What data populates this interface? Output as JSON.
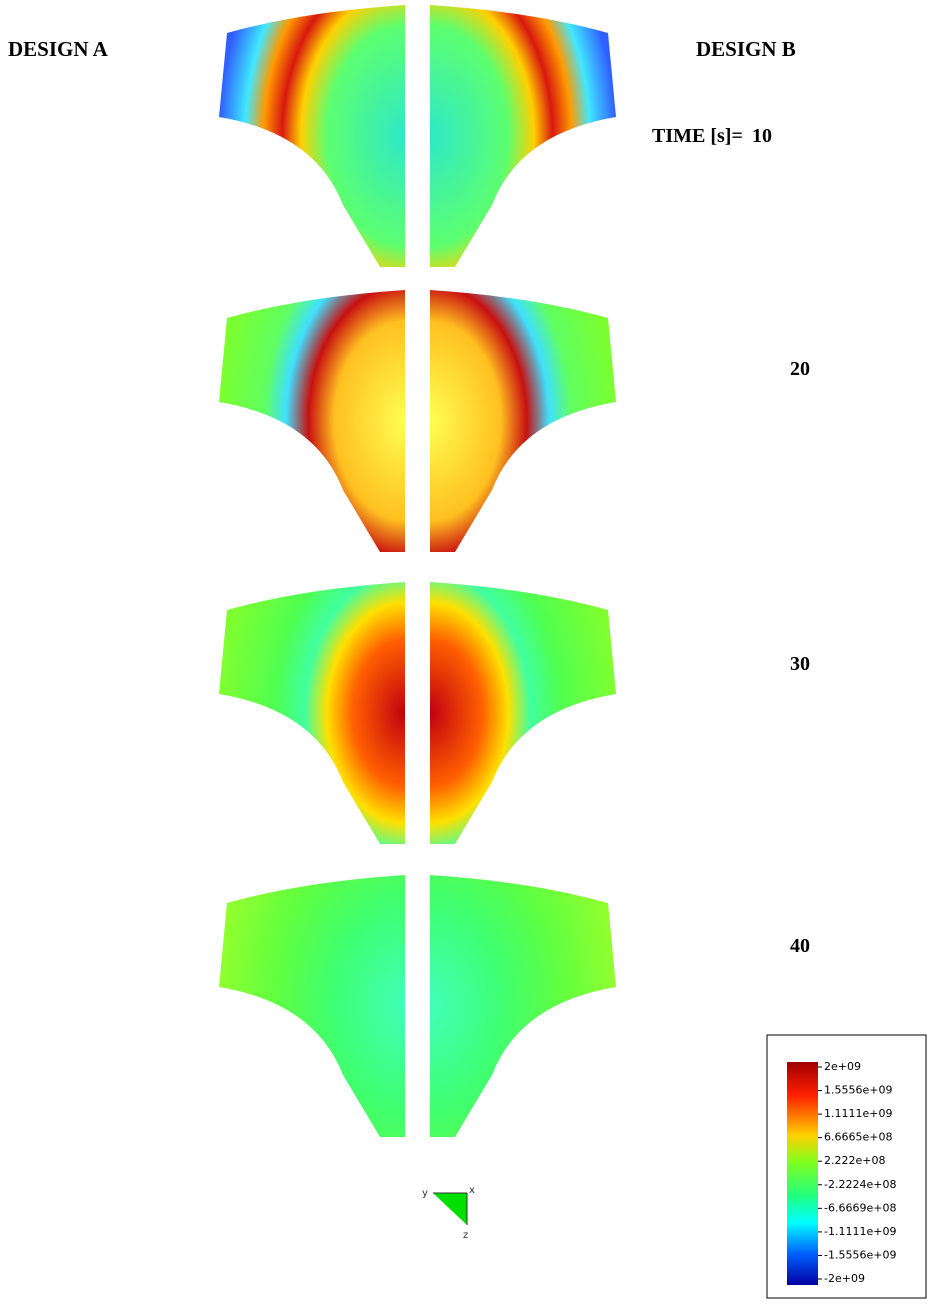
{
  "headers": {
    "design_a": "DESIGN A",
    "design_b": "DESIGN B"
  },
  "time_label": "TIME [s]=",
  "times": [
    10,
    20,
    30,
    40
  ],
  "legend": {
    "labels": [
      "2e+09",
      "1.5556e+09",
      "1.1111e+09",
      "6.6665e+08",
      "2.222e+08",
      "-2.2224e+08",
      "-6.6669e+08",
      "-1.1111e+09",
      "-1.5556e+09",
      "-2e+09"
    ]
  },
  "triad": {
    "y": "y",
    "x": "x",
    "z": "z"
  }
}
